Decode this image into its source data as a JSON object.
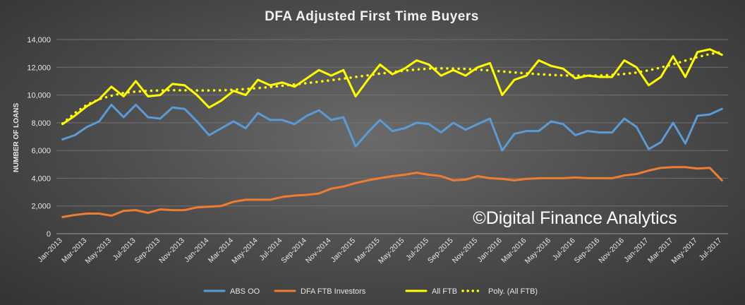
{
  "chart_data": {
    "type": "line",
    "title": "DFA Adjusted First Time Buyers",
    "ylabel": "NUMBER OF LOANS",
    "xlabel": "",
    "ylim": [
      0,
      14000
    ],
    "yticks": [
      0,
      2000,
      4000,
      6000,
      8000,
      10000,
      12000,
      14000
    ],
    "ytick_labels": [
      "0",
      "2,000",
      "4,000",
      "6,000",
      "8,000",
      "10,000",
      "12,000",
      "14,000"
    ],
    "grid": "horizontal",
    "legend_position": "bottom",
    "watermark": "©Digital Finance Analytics",
    "x": [
      "Jan-2013",
      "Feb-2013",
      "Mar-2013",
      "Apr-2013",
      "May-2013",
      "Jun-2013",
      "Jul-2013",
      "Aug-2013",
      "Sep-2013",
      "Oct-2013",
      "Nov-2013",
      "Dec-2013",
      "Jan-2014",
      "Feb-2014",
      "Mar-2014",
      "Apr-2014",
      "May-2014",
      "Jun-2014",
      "Jul-2014",
      "Aug-2014",
      "Sep-2014",
      "Oct-2014",
      "Nov-2014",
      "Dec-2014",
      "Jan-2015",
      "Feb-2015",
      "Mar-2015",
      "Apr-2015",
      "May-2015",
      "Jun-2015",
      "Jul-2015",
      "Aug-2015",
      "Sep-2015",
      "Oct-2015",
      "Nov-2015",
      "Dec-2015",
      "Jan-2016",
      "Feb-2016",
      "Mar-2016",
      "Apr-2016",
      "May-2016",
      "Jun-2016",
      "Jul-2016",
      "Aug-2016",
      "Sep-2016",
      "Oct-2016",
      "Nov-2016",
      "Dec-2016",
      "Jan-2017",
      "Feb-2017",
      "Mar-2017",
      "Apr-2017",
      "May-2017",
      "Jun-2017",
      "Jul-2017"
    ],
    "x_tick_labels": [
      "Jan-2013",
      "",
      "Mar-2013",
      "",
      "May-2013",
      "",
      "Jul-2013",
      "",
      "Sep-2013",
      "",
      "Nov-2013",
      "",
      "Jan-2014",
      "",
      "Mar-2014",
      "",
      "May-2014",
      "",
      "Jul-2014",
      "",
      "Sep-2014",
      "",
      "Nov-2014",
      "",
      "Jan-2015",
      "",
      "Mar-2015",
      "",
      "May-2015",
      "",
      "Jul-2015",
      "",
      "Sep-2015",
      "",
      "Nov-2015",
      "",
      "Jan-2016",
      "",
      "Mar-2016",
      "",
      "May-2016",
      "",
      "Jul-2016",
      "",
      "Sep-2016",
      "",
      "Nov-2016",
      "",
      "Jan-2017",
      "",
      "Mar-2017",
      "",
      "May-2017",
      "",
      "Jul-2017"
    ],
    "series": [
      {
        "name": "ABS OO",
        "color": "#5b9bd5",
        "style": "solid",
        "values": [
          6800,
          7100,
          7700,
          8100,
          9300,
          8400,
          9300,
          8400,
          8300,
          9100,
          9000,
          8100,
          7100,
          7600,
          8100,
          7600,
          8700,
          8200,
          8200,
          7900,
          8500,
          8900,
          8200,
          8400,
          6300,
          7300,
          8200,
          7400,
          7600,
          8000,
          7900,
          7300,
          8000,
          7500,
          7900,
          8300,
          6000,
          7200,
          7400,
          7400,
          8100,
          7900,
          7100,
          7400,
          7300,
          7300,
          8300,
          7700,
          6100,
          6600,
          8000,
          6500,
          8500,
          8600,
          9000
        ]
      },
      {
        "name": "DFA FTB Investors",
        "color": "#ed7d31",
        "style": "solid",
        "values": [
          1200,
          1350,
          1450,
          1450,
          1300,
          1650,
          1700,
          1500,
          1750,
          1700,
          1700,
          1900,
          1950,
          2000,
          2300,
          2450,
          2450,
          2450,
          2650,
          2750,
          2800,
          2900,
          3250,
          3400,
          3650,
          3850,
          4000,
          4150,
          4250,
          4400,
          4250,
          4150,
          3850,
          3900,
          4150,
          4000,
          3950,
          3850,
          3950,
          4000,
          4000,
          4000,
          4050,
          4000,
          4000,
          4000,
          4200,
          4300,
          4550,
          4750,
          4800,
          4800,
          4700,
          4750,
          3850
        ]
      },
      {
        "name": "All FTB",
        "color": "#ffff00",
        "style": "solid",
        "values": [
          7900,
          8500,
          9200,
          9700,
          10600,
          9900,
          11000,
          9900,
          10000,
          10800,
          10700,
          10000,
          9100,
          9600,
          10300,
          10000,
          11100,
          10700,
          10900,
          10600,
          11200,
          11800,
          11400,
          11800,
          9900,
          11100,
          12200,
          11500,
          11900,
          12500,
          12200,
          11400,
          11800,
          11400,
          12000,
          12300,
          10000,
          11100,
          11400,
          12500,
          12100,
          11900,
          11200,
          11400,
          11300,
          11300,
          12500,
          12000,
          10700,
          11300,
          12800,
          11300,
          13100,
          13300,
          12900
        ]
      },
      {
        "name": "Poly. (All FTB)",
        "color": "#ffff00",
        "style": "dotted",
        "values": [
          7950,
          8700,
          9300,
          9700,
          9950,
          10150,
          10250,
          10300,
          10330,
          10350,
          10340,
          10330,
          10330,
          10340,
          10380,
          10430,
          10500,
          10580,
          10670,
          10760,
          10860,
          10960,
          11070,
          11180,
          11300,
          11420,
          11540,
          11650,
          11760,
          11840,
          11900,
          11920,
          11910,
          11880,
          11830,
          11770,
          11700,
          11630,
          11560,
          11500,
          11450,
          11420,
          11400,
          11400,
          11410,
          11450,
          11520,
          11620,
          11780,
          11980,
          12220,
          12480,
          12740,
          12950,
          13100
        ]
      }
    ]
  }
}
